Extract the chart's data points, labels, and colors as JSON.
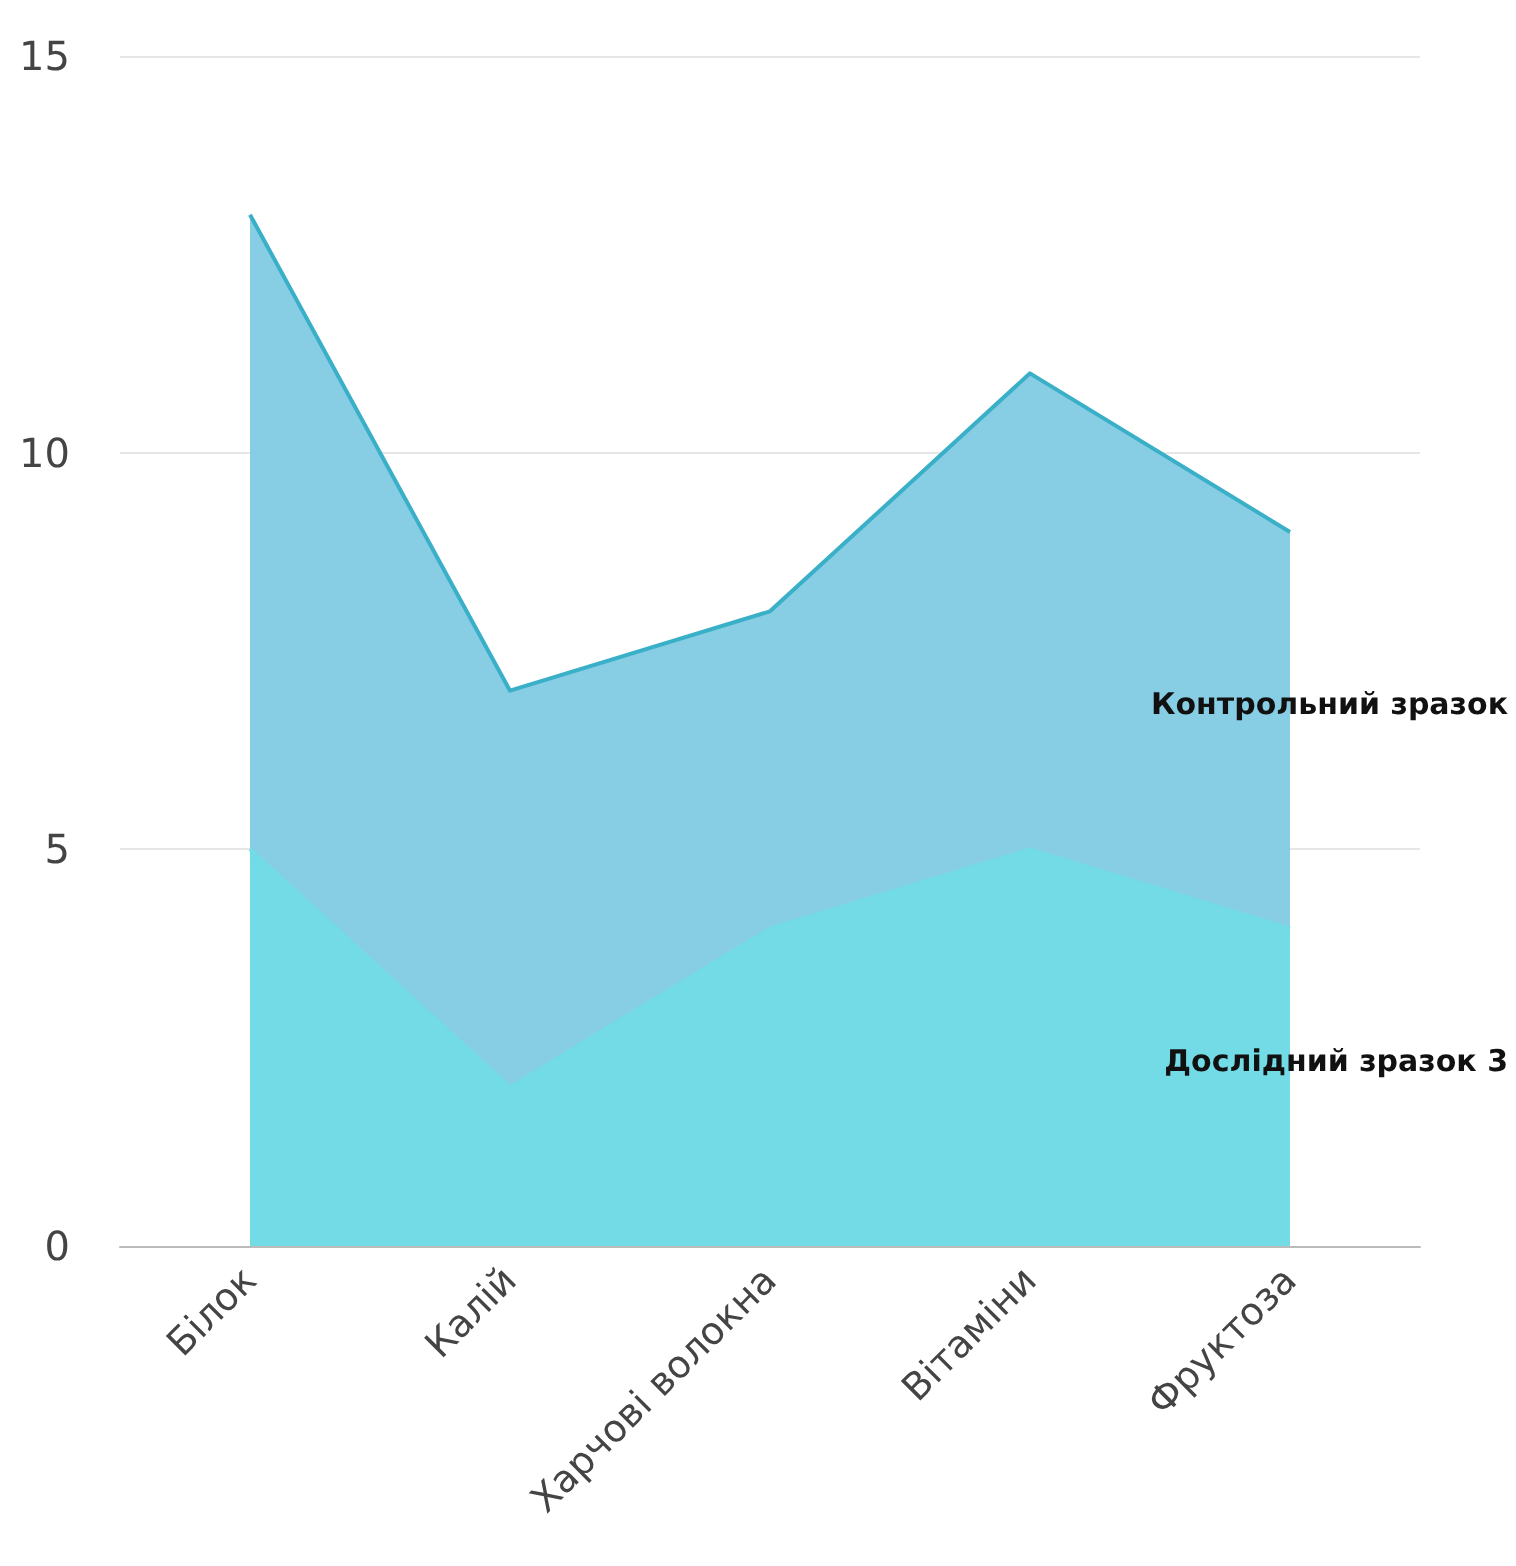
{
  "chart_data": {
    "type": "area",
    "categories": [
      "Білок",
      "Калій",
      "Харчові волокна",
      "Вітаміни",
      "Фруктоза"
    ],
    "series": [
      {
        "name": "Контрольний зразок",
        "color": "#87cde3",
        "values": [
          13,
          7,
          8,
          11,
          9
        ]
      },
      {
        "name": "Дослідний зразок 3",
        "color": "#72dbe6",
        "values": [
          5,
          2,
          4,
          5,
          4
        ]
      }
    ],
    "ylim": [
      0,
      15
    ],
    "yticks": [
      0,
      5,
      10,
      15
    ],
    "grid": "y"
  }
}
